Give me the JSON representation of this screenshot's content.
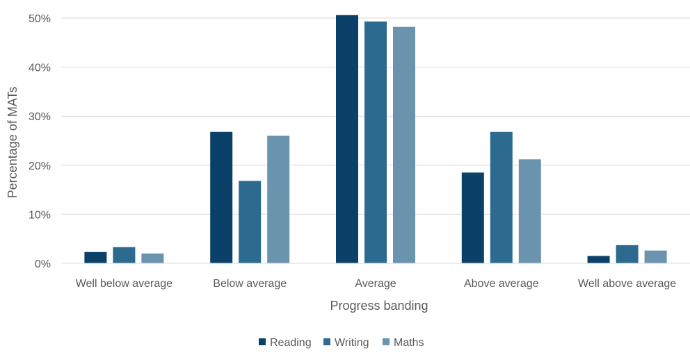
{
  "chart_data": {
    "type": "bar",
    "title": "",
    "xlabel": "Progress banding",
    "ylabel": "Percentage of MATs",
    "categories": [
      "Well below average",
      "Below average",
      "Average",
      "Above average",
      "Well above average"
    ],
    "series": [
      {
        "name": "Reading",
        "color": "#0b4168",
        "values": [
          2.3,
          26.8,
          50.6,
          18.5,
          1.5
        ]
      },
      {
        "name": "Writing",
        "color": "#2c6b8f",
        "values": [
          3.3,
          16.8,
          49.3,
          26.8,
          3.7
        ]
      },
      {
        "name": "Maths",
        "color": "#6a93ad",
        "values": [
          2.0,
          26.0,
          48.2,
          21.2,
          2.6
        ]
      }
    ],
    "ylim": [
      0,
      50
    ],
    "yticks": [
      0,
      10,
      20,
      30,
      40,
      50
    ],
    "ytick_labels": [
      "0%",
      "10%",
      "20%",
      "30%",
      "40%",
      "50%"
    ],
    "grid": true,
    "gridline_color": "#d9d9d9",
    "legend_position": "bottom"
  }
}
